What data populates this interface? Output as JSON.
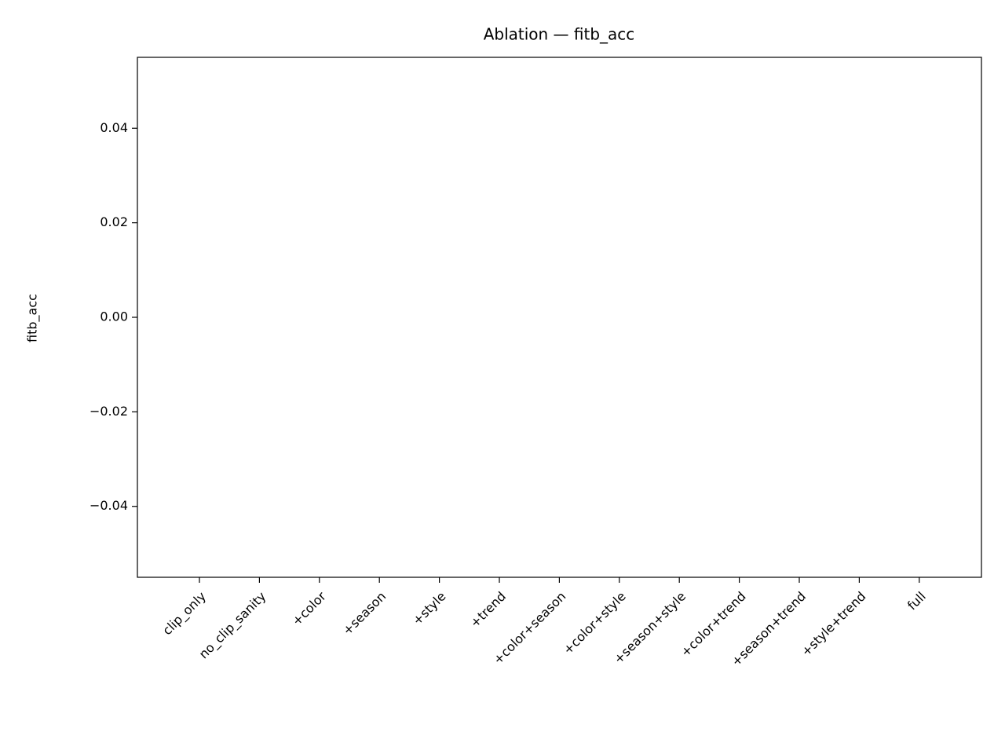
{
  "chart_data": {
    "type": "bar",
    "title": "Ablation — fitb_acc",
    "y_label": "fitb_acc",
    "categories": [
      "clip_only",
      "no_clip_sanity",
      "+color",
      "+season",
      "+style",
      "+trend",
      "+color+season",
      "+color+style",
      "+season+style",
      "+color+trend",
      "+season+trend",
      "+style+trend",
      "full"
    ],
    "values": [
      0,
      0,
      0,
      0,
      0,
      0,
      0,
      0,
      0,
      0,
      0,
      0,
      0
    ],
    "color": "#1f77b4",
    "ylim": [
      -0.055,
      0.055
    ],
    "yticks": [
      {
        "value": -0.04,
        "label": "−0.04"
      },
      {
        "value": -0.02,
        "label": "−0.02"
      },
      {
        "value": 0,
        "label": "0.00"
      },
      0.02,
      0.04
    ],
    "grid": false
  }
}
